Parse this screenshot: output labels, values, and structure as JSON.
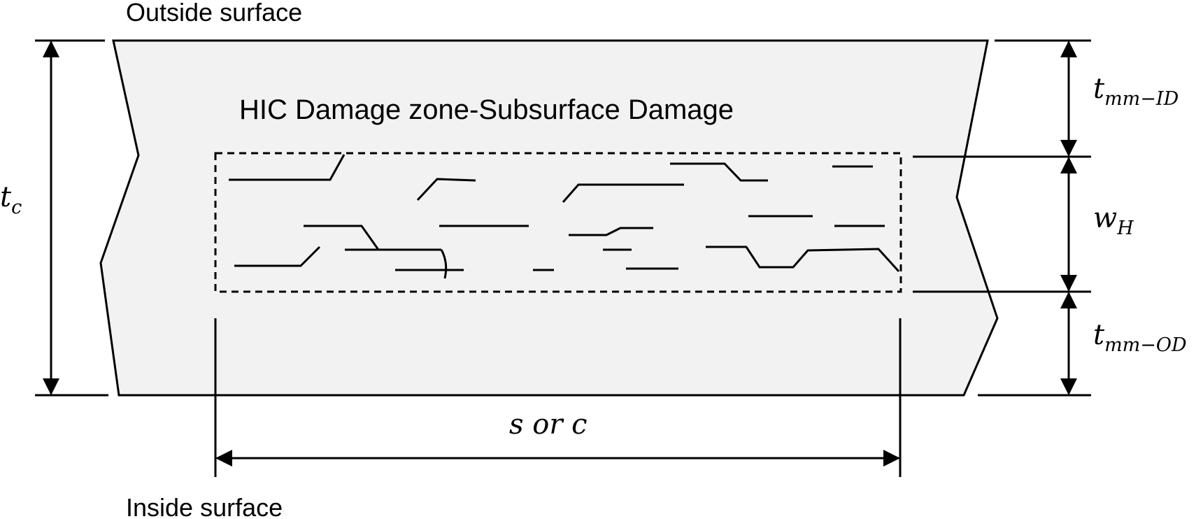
{
  "labels": {
    "outside_surface": "Outside surface",
    "inside_surface": "Inside surface",
    "damage_zone": "HIC Damage zone-Subsurface Damage"
  },
  "dimensions": {
    "tc": {
      "base": "t",
      "sub": "c"
    },
    "tmm_id": {
      "base": "t",
      "sub": "mm−ID"
    },
    "wh": {
      "base": "w",
      "sub": "H"
    },
    "tmm_od": {
      "base": "t",
      "sub": "mm−OD"
    },
    "s_or_c": "s or c"
  },
  "colors": {
    "plate_fill": "#f2f2f2",
    "stroke": "#000000",
    "background": "#ffffff"
  }
}
